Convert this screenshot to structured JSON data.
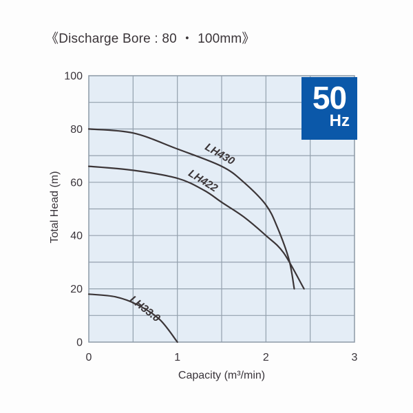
{
  "title": "《Discharge Bore : 80 ・ 100mm》",
  "badge": {
    "value": "50",
    "unit": "Hz",
    "bg_color": "#0b58a9",
    "text_color": "#ffffff"
  },
  "chart_data": {
    "type": "line",
    "title": "",
    "xlabel": "Capacity (m³/min)",
    "ylabel": "Total Head (m)",
    "xlim": [
      0,
      3
    ],
    "ylim": [
      0,
      100
    ],
    "x_tick_labels": [
      0,
      1,
      2,
      3
    ],
    "y_tick_labels": [
      0,
      20,
      40,
      60,
      80,
      100
    ],
    "x_gridline_step": 0.5,
    "y_gridline_step": 10,
    "grid": true,
    "legend_position": "inline-curve-labels",
    "plot_bg_color": "#e4edf6",
    "grid_color": "#93a0ad",
    "border_color": "#8c99a6",
    "curve_color": "#3b3537",
    "text_color": "#39343a",
    "series": [
      {
        "name": "LH430",
        "points": [
          [
            0,
            80
          ],
          [
            0.5,
            78.5
          ],
          [
            1.0,
            72.5
          ],
          [
            1.5,
            66
          ],
          [
            1.75,
            60
          ],
          [
            2.0,
            51.5
          ],
          [
            2.13,
            43
          ],
          [
            2.26,
            31
          ],
          [
            2.32,
            20
          ]
        ],
        "label_at": [
          1.46,
          69.5
        ],
        "label_rotation": 30
      },
      {
        "name": "LH422",
        "points": [
          [
            0,
            66
          ],
          [
            0.5,
            64.5
          ],
          [
            1.0,
            61.5
          ],
          [
            1.3,
            57
          ],
          [
            1.5,
            52.5
          ],
          [
            1.75,
            47
          ],
          [
            2.0,
            40
          ],
          [
            2.2,
            33.5
          ],
          [
            2.43,
            20
          ]
        ],
        "label_at": [
          1.27,
          59.5
        ],
        "label_rotation": 32
      },
      {
        "name": "LH33.0",
        "points": [
          [
            0,
            18
          ],
          [
            0.3,
            17
          ],
          [
            0.55,
            14
          ],
          [
            0.8,
            8.5
          ],
          [
            1.0,
            0
          ]
        ],
        "label_at": [
          0.61,
          11.5
        ],
        "label_rotation": 38
      }
    ]
  }
}
